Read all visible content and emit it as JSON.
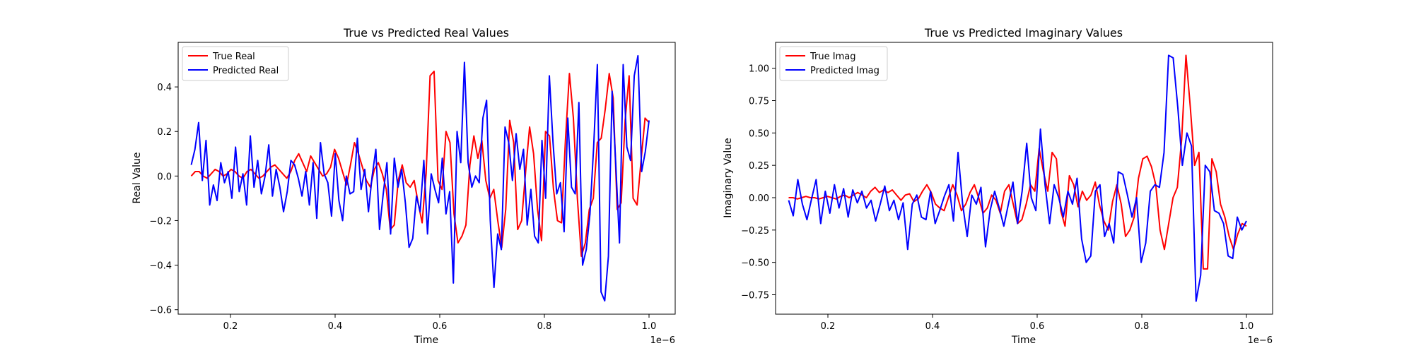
{
  "chart_data": [
    {
      "type": "line",
      "title": "True vs Predicted Real Values",
      "xlabel": "Time",
      "ylabel": "Real Value",
      "x_offset_label": "1e−6",
      "xlim": [
        0.1,
        1.05
      ],
      "ylim": [
        -0.62,
        0.6
      ],
      "xticks": [
        0.2,
        0.4,
        0.6,
        0.8,
        1.0
      ],
      "xtick_labels": [
        "0.2",
        "0.4",
        "0.6",
        "0.8",
        "1.0"
      ],
      "yticks": [
        -0.6,
        -0.4,
        -0.2,
        0.0,
        0.2,
        0.4
      ],
      "ytick_labels": [
        "−0.6",
        "−0.4",
        "−0.2",
        "0.0",
        "0.2",
        "0.4"
      ],
      "legend_position": "upper-left",
      "x_range": [
        0.125,
        1.0
      ],
      "series": [
        {
          "name": "True Real",
          "color": "#ff0000",
          "values": [
            0.0,
            0.02,
            0.02,
            0.0,
            -0.01,
            0.01,
            0.03,
            0.02,
            0.0,
            0.01,
            0.03,
            0.02,
            0.0,
            -0.01,
            0.02,
            0.03,
            0.01,
            -0.01,
            0.0,
            0.02,
            0.04,
            0.05,
            0.03,
            0.01,
            -0.01,
            0.02,
            0.07,
            0.1,
            0.06,
            0.02,
            0.09,
            0.06,
            0.03,
            0.0,
            0.01,
            0.04,
            0.12,
            0.08,
            0.02,
            -0.04,
            0.05,
            0.15,
            0.1,
            0.04,
            -0.02,
            -0.05,
            0.03,
            0.06,
            0.01,
            -0.06,
            -0.24,
            -0.22,
            -0.02,
            0.05,
            -0.03,
            -0.05,
            -0.02,
            -0.12,
            -0.21,
            0.01,
            0.45,
            0.47,
            -0.02,
            -0.06,
            0.2,
            0.15,
            -0.17,
            -0.3,
            -0.27,
            -0.22,
            0.05,
            0.18,
            0.08,
            0.16,
            -0.02,
            -0.1,
            -0.06,
            -0.2,
            -0.32,
            -0.15,
            0.25,
            0.15,
            -0.24,
            -0.2,
            0.02,
            0.22,
            0.1,
            -0.15,
            -0.29,
            0.2,
            0.18,
            -0.06,
            -0.2,
            -0.21,
            0.16,
            0.46,
            0.26,
            -0.1,
            -0.36,
            -0.3,
            -0.15,
            -0.1,
            0.15,
            0.17,
            0.3,
            0.46,
            0.35,
            -0.15,
            -0.12,
            0.25,
            0.45,
            -0.1,
            -0.13,
            0.07,
            0.26,
            0.24
          ]
        },
        {
          "name": "Predicted Real",
          "color": "#0000ff",
          "values": [
            0.05,
            0.12,
            0.24,
            -0.02,
            0.16,
            -0.13,
            -0.04,
            -0.11,
            0.06,
            -0.03,
            0.02,
            -0.1,
            0.13,
            -0.07,
            0.01,
            -0.13,
            0.18,
            -0.05,
            0.07,
            -0.08,
            0.0,
            0.14,
            -0.09,
            0.03,
            -0.05,
            -0.16,
            -0.07,
            0.07,
            0.05,
            -0.01,
            -0.09,
            0.02,
            -0.13,
            0.06,
            -0.19,
            0.15,
            0.01,
            -0.03,
            -0.18,
            0.1,
            -0.11,
            -0.2,
            0.0,
            -0.08,
            -0.07,
            0.17,
            -0.06,
            0.03,
            -0.16,
            0.0,
            0.12,
            -0.24,
            -0.08,
            0.06,
            -0.26,
            0.08,
            -0.05,
            0.03,
            -0.12,
            -0.32,
            -0.28,
            -0.09,
            -0.16,
            0.07,
            -0.26,
            0.01,
            -0.06,
            -0.12,
            0.08,
            -0.17,
            -0.07,
            -0.48,
            0.2,
            0.06,
            0.51,
            0.06,
            -0.05,
            0.0,
            -0.03,
            0.26,
            0.34,
            -0.2,
            -0.5,
            -0.26,
            -0.33,
            0.22,
            0.15,
            -0.02,
            0.19,
            0.03,
            0.12,
            -0.22,
            -0.06,
            -0.27,
            -0.3,
            0.16,
            -0.1,
            0.45,
            0.15,
            -0.08,
            -0.03,
            -0.25,
            0.26,
            -0.05,
            -0.08,
            0.33,
            -0.4,
            -0.33,
            -0.17,
            0.13,
            0.5,
            -0.52,
            -0.56,
            -0.36,
            0.38,
            0.05,
            -0.3,
            0.5,
            0.13,
            0.07,
            0.45,
            0.54,
            0.02,
            0.11,
            0.25
          ]
        }
      ]
    },
    {
      "type": "line",
      "title": "True vs Predicted Imaginary Values",
      "xlabel": "Time",
      "ylabel": "Imaginary Value",
      "x_offset_label": "1e−6",
      "xlim": [
        0.1,
        1.05
      ],
      "ylim": [
        -0.9,
        1.2
      ],
      "xticks": [
        0.2,
        0.4,
        0.6,
        0.8,
        1.0
      ],
      "xtick_labels": [
        "0.2",
        "0.4",
        "0.6",
        "0.8",
        "1.0"
      ],
      "yticks": [
        -0.75,
        -0.5,
        -0.25,
        0.0,
        0.25,
        0.5,
        0.75,
        1.0
      ],
      "ytick_labels": [
        "−0.75",
        "−0.50",
        "−0.25",
        "0.00",
        "0.25",
        "0.50",
        "0.75",
        "1.00"
      ],
      "legend_position": "upper-left",
      "x_range": [
        0.125,
        1.0
      ],
      "series": [
        {
          "name": "True Imag",
          "color": "#ff0000",
          "values": [
            0.0,
            0.0,
            -0.01,
            0.0,
            0.01,
            0.0,
            0.0,
            -0.01,
            0.0,
            0.01,
            0.0,
            -0.01,
            0.01,
            0.02,
            0.0,
            0.02,
            0.04,
            0.02,
            0.0,
            0.05,
            0.08,
            0.04,
            0.06,
            0.04,
            0.06,
            0.02,
            -0.02,
            0.02,
            0.03,
            -0.03,
            -0.01,
            0.05,
            0.1,
            0.04,
            -0.05,
            -0.08,
            -0.1,
            0.0,
            0.1,
            0.02,
            -0.1,
            -0.05,
            0.04,
            0.1,
            0.0,
            -0.12,
            -0.08,
            0.02,
            -0.02,
            -0.12,
            0.05,
            0.1,
            -0.05,
            -0.2,
            -0.17,
            -0.05,
            0.1,
            0.05,
            0.38,
            0.2,
            0.05,
            0.35,
            0.3,
            -0.1,
            -0.22,
            0.17,
            0.1,
            -0.07,
            0.05,
            -0.02,
            0.02,
            0.12,
            -0.06,
            -0.18,
            -0.25,
            -0.03,
            0.1,
            -0.05,
            -0.3,
            -0.25,
            -0.15,
            0.15,
            0.3,
            0.32,
            0.24,
            0.1,
            -0.25,
            -0.4,
            -0.2,
            0.0,
            0.08,
            0.45,
            1.1,
            0.7,
            0.25,
            0.35,
            -0.55,
            -0.55,
            0.3,
            0.2,
            -0.05,
            -0.15,
            -0.3,
            -0.4,
            -0.28,
            -0.2,
            -0.22
          ]
        },
        {
          "name": "Predicted Imag",
          "color": "#0000ff",
          "values": [
            -0.02,
            -0.14,
            0.14,
            -0.05,
            -0.17,
            -0.01,
            0.14,
            -0.2,
            0.05,
            -0.12,
            0.1,
            -0.08,
            0.07,
            -0.15,
            0.06,
            -0.04,
            0.05,
            -0.08,
            -0.02,
            -0.18,
            -0.05,
            0.09,
            -0.1,
            -0.02,
            -0.17,
            -0.04,
            -0.4,
            -0.05,
            0.02,
            -0.15,
            -0.17,
            0.05,
            -0.2,
            -0.1,
            0.01,
            0.1,
            -0.18,
            0.35,
            -0.05,
            -0.3,
            0.02,
            -0.05,
            0.08,
            -0.38,
            -0.1,
            0.05,
            -0.08,
            -0.22,
            -0.05,
            0.12,
            -0.2,
            0.05,
            0.42,
            0.0,
            -0.1,
            0.53,
            0.1,
            -0.2,
            0.1,
            0.0,
            -0.15,
            0.05,
            -0.05,
            0.15,
            -0.32,
            -0.5,
            -0.45,
            0.05,
            0.1,
            -0.3,
            -0.2,
            -0.35,
            0.2,
            0.18,
            0.02,
            -0.15,
            0.0,
            -0.5,
            -0.35,
            0.05,
            0.1,
            0.08,
            0.35,
            1.1,
            1.08,
            0.7,
            0.25,
            0.5,
            0.4,
            -0.8,
            -0.6,
            0.25,
            0.2,
            -0.1,
            -0.12,
            -0.2,
            -0.45,
            -0.47,
            -0.15,
            -0.25,
            -0.18
          ]
        }
      ]
    }
  ]
}
